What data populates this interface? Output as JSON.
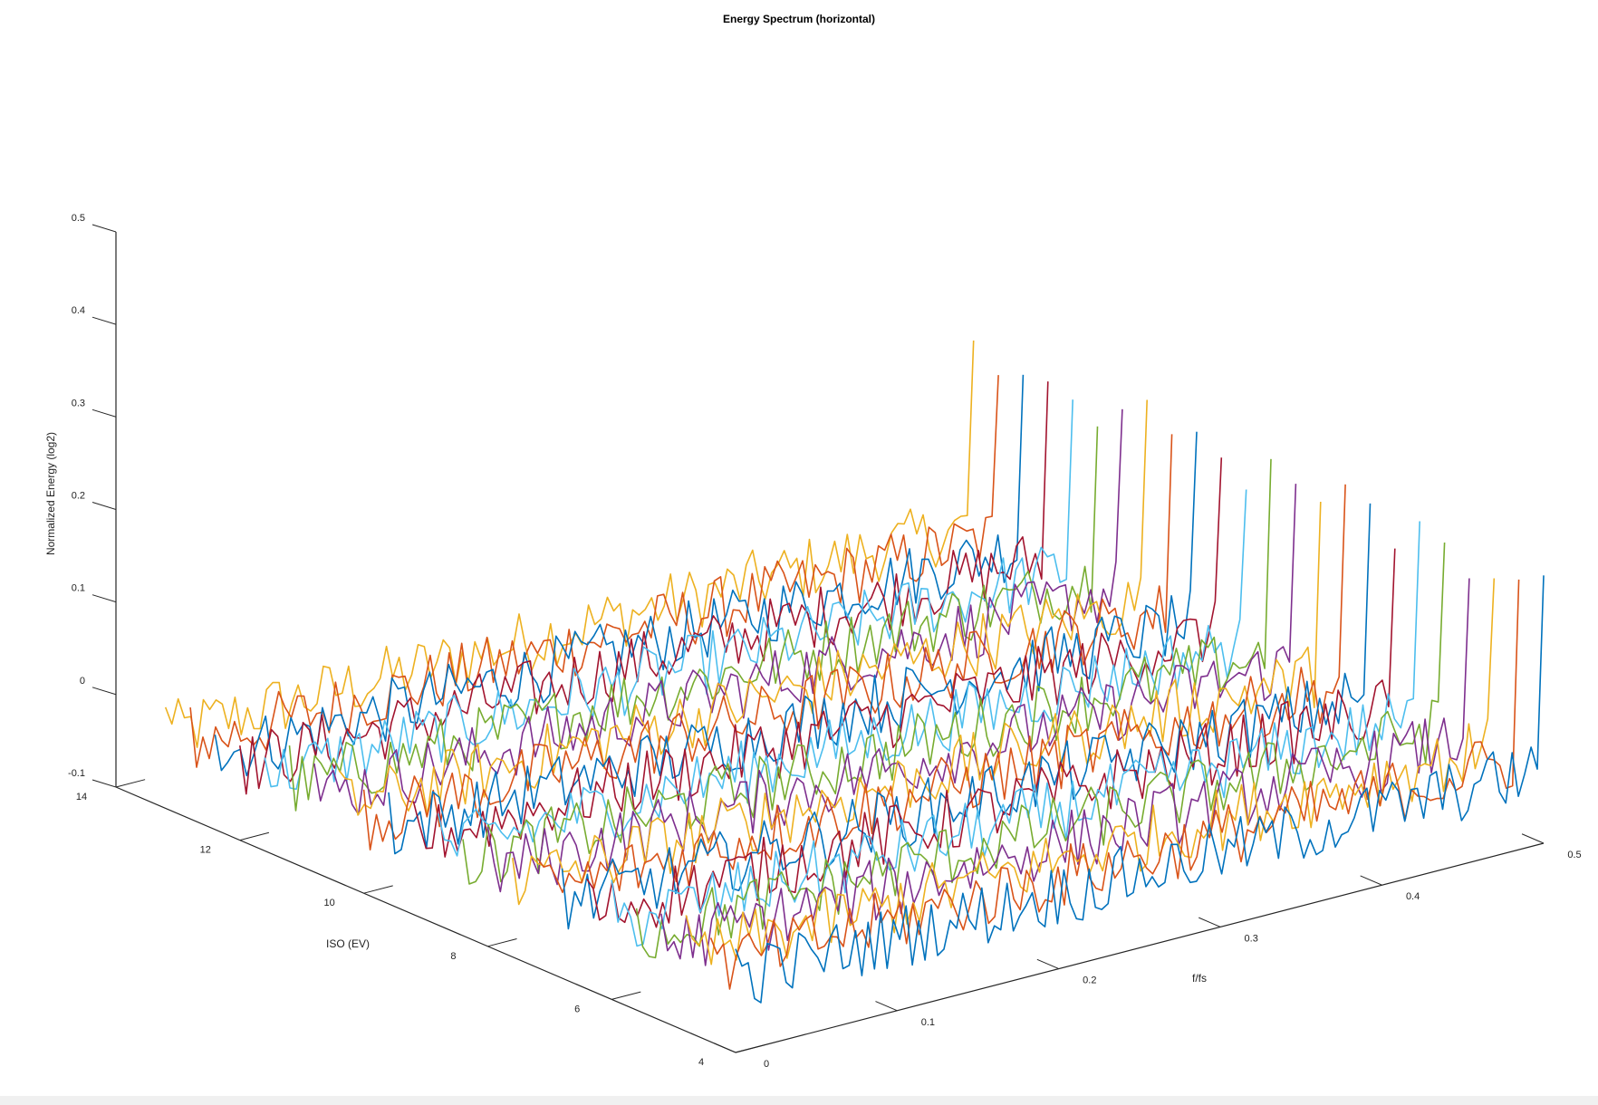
{
  "chart_data": {
    "type": "line",
    "title": "Energy Spectrum (horizontal)",
    "xlabel": "f/fs",
    "ylabel": "ISO (EV)",
    "zlabel": "Normalized Energy (log2)",
    "xlim": [
      0,
      0.5
    ],
    "ylim": [
      4,
      14
    ],
    "zlim": [
      -0.1,
      0.5
    ],
    "xticks": [
      "0",
      "0.1",
      "0.2",
      "0.3",
      "0.4",
      "0.5"
    ],
    "yticks": [
      "4",
      "6",
      "8",
      "10",
      "12",
      "14"
    ],
    "zticks": [
      "-0.1",
      "0",
      "0.1",
      "0.2",
      "0.3",
      "0.4",
      "0.5"
    ],
    "grid": false,
    "series_count": 24,
    "series_iso_range": [
      4,
      13.2
    ],
    "series_colors": [
      "#0072BD",
      "#D95319",
      "#EDB120",
      "#7E2F8E",
      "#77AC30",
      "#4DBEEE",
      "#A2142F"
    ],
    "profile": {
      "description_free": true,
      "f_points": 128,
      "baseline_energy": -0.02,
      "noise_amplitude": 0.035,
      "endpoint_spike_energy": 0.14
    }
  }
}
